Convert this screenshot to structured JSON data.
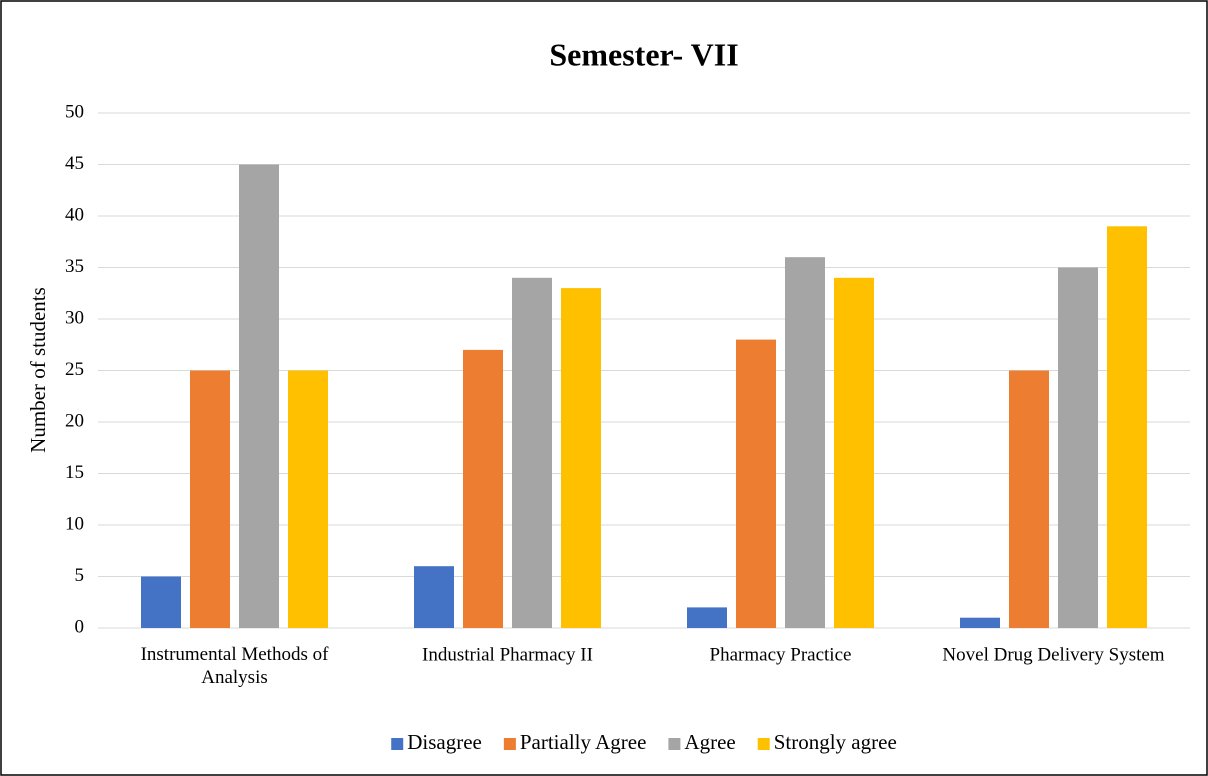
{
  "chart_data": {
    "type": "bar",
    "title": "Semester- VII",
    "y_label": "Number of students",
    "categories": [
      "Instrumental Methods of Analysis",
      "Industrial Pharmacy II",
      "Pharmacy Practice",
      "Novel Drug Delivery System"
    ],
    "series": [
      {
        "name": "Disagree",
        "color": "#4472c4",
        "values": [
          5,
          6,
          2,
          1
        ]
      },
      {
        "name": "Partially Agree",
        "color": "#ed7d31",
        "values": [
          25,
          27,
          28,
          25
        ]
      },
      {
        "name": "Agree",
        "color": "#a5a5a5",
        "values": [
          45,
          34,
          36,
          35
        ]
      },
      {
        "name": "Strongly agree",
        "color": "#ffc000",
        "values": [
          25,
          33,
          34,
          39
        ]
      }
    ],
    "ylim": [
      0,
      50
    ],
    "yticks": [
      0,
      5,
      10,
      15,
      20,
      25,
      30,
      35,
      40,
      45,
      50
    ],
    "grid": true,
    "legend": "bottom"
  }
}
